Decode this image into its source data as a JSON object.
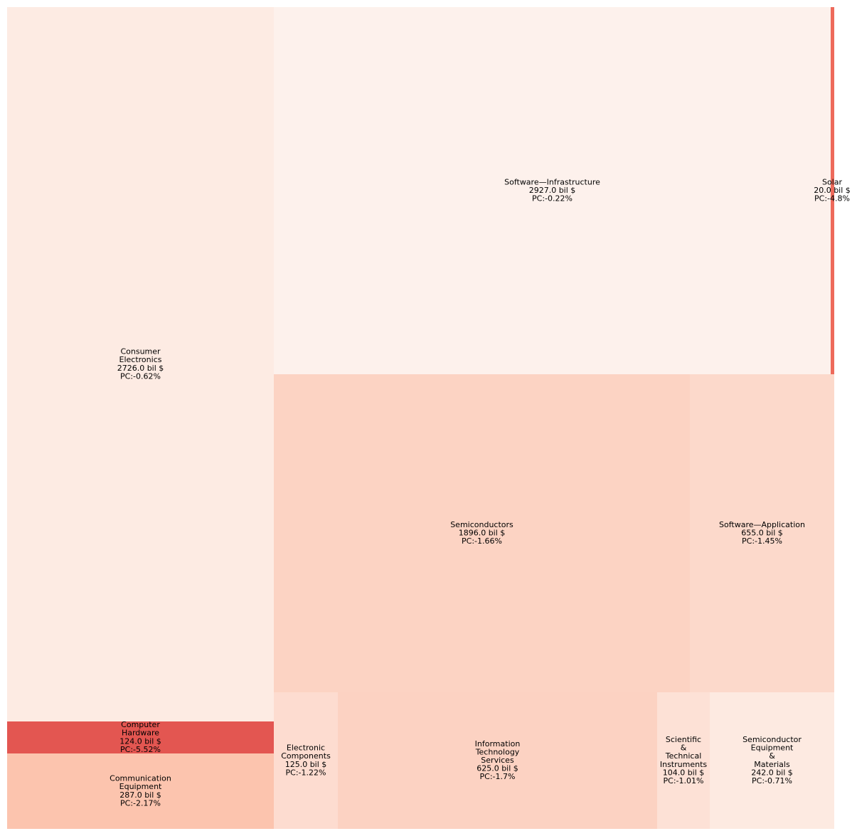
{
  "chart_data": {
    "type": "treemap",
    "value_unit": "bil $",
    "tiles": [
      {
        "name": "Consumer Electronics",
        "label_lines": [
          "Consumer",
          "Electronics"
        ],
        "value": 2726.0,
        "value_text": "2726.0 bil $",
        "pc": -0.62,
        "pc_text": "PC:-0.62%",
        "color": "#fdebe3"
      },
      {
        "name": "Computer Hardware",
        "label_lines": [
          "Computer",
          "Hardware"
        ],
        "value": 124.0,
        "value_text": "124.0 bil $",
        "pc": -5.52,
        "pc_text": "PC:-5.52%",
        "color": "#e35651"
      },
      {
        "name": "Communication Equipment",
        "label_lines": [
          "Communication",
          "Equipment"
        ],
        "value": 287.0,
        "value_text": "287.0 bil $",
        "pc": -2.17,
        "pc_text": "PC:-2.17%",
        "color": "#fcc4ae"
      },
      {
        "name": "Software—Infrastructure",
        "label_lines": [
          "Software—Infrastructure"
        ],
        "value": 2927.0,
        "value_text": "2927.0 bil $",
        "pc": -0.22,
        "pc_text": "PC:-0.22%",
        "color": "#fdf1ec"
      },
      {
        "name": "Solar",
        "label_lines": [
          "Solar"
        ],
        "value": 20.0,
        "value_text": "20.0 bil $",
        "pc": -4.8,
        "pc_text": "PC:-4.8%",
        "color": "#ee6a5b"
      },
      {
        "name": "Semiconductors",
        "label_lines": [
          "Semiconductors"
        ],
        "value": 1896.0,
        "value_text": "1896.0 bil $",
        "pc": -1.66,
        "pc_text": "PC:-1.66%",
        "color": "#fcd3c3"
      },
      {
        "name": "Software—Application",
        "label_lines": [
          "Software—Application"
        ],
        "value": 655.0,
        "value_text": "655.0 bil $",
        "pc": -1.45,
        "pc_text": "PC:-1.45%",
        "color": "#fcd9cb"
      },
      {
        "name": "Electronic Components",
        "label_lines": [
          "Electronic",
          "Components"
        ],
        "value": 125.0,
        "value_text": "125.0 bil $",
        "pc": -1.22,
        "pc_text": "PC:-1.22%",
        "color": "#fddcd0"
      },
      {
        "name": "Information Technology Services",
        "label_lines": [
          "Information",
          "Technology",
          "Services"
        ],
        "value": 625.0,
        "value_text": "625.0 bil $",
        "pc": -1.7,
        "pc_text": "PC:-1.7%",
        "color": "#fcd2c2"
      },
      {
        "name": "Scientific & Technical Instruments",
        "label_lines": [
          "Scientific",
          "&",
          "Technical",
          "Instruments"
        ],
        "value": 104.0,
        "value_text": "104.0 bil $",
        "pc": -1.01,
        "pc_text": "PC:-1.01%",
        "color": "#fde1d6"
      },
      {
        "name": "Semiconductor Equipment & Materials",
        "label_lines": [
          "Semiconductor",
          "Equipment",
          "&",
          "Materials"
        ],
        "value": 242.0,
        "value_text": "242.0 bil $",
        "pc": -0.71,
        "pc_text": "PC:-0.71%",
        "color": "#fdeae1"
      }
    ]
  }
}
